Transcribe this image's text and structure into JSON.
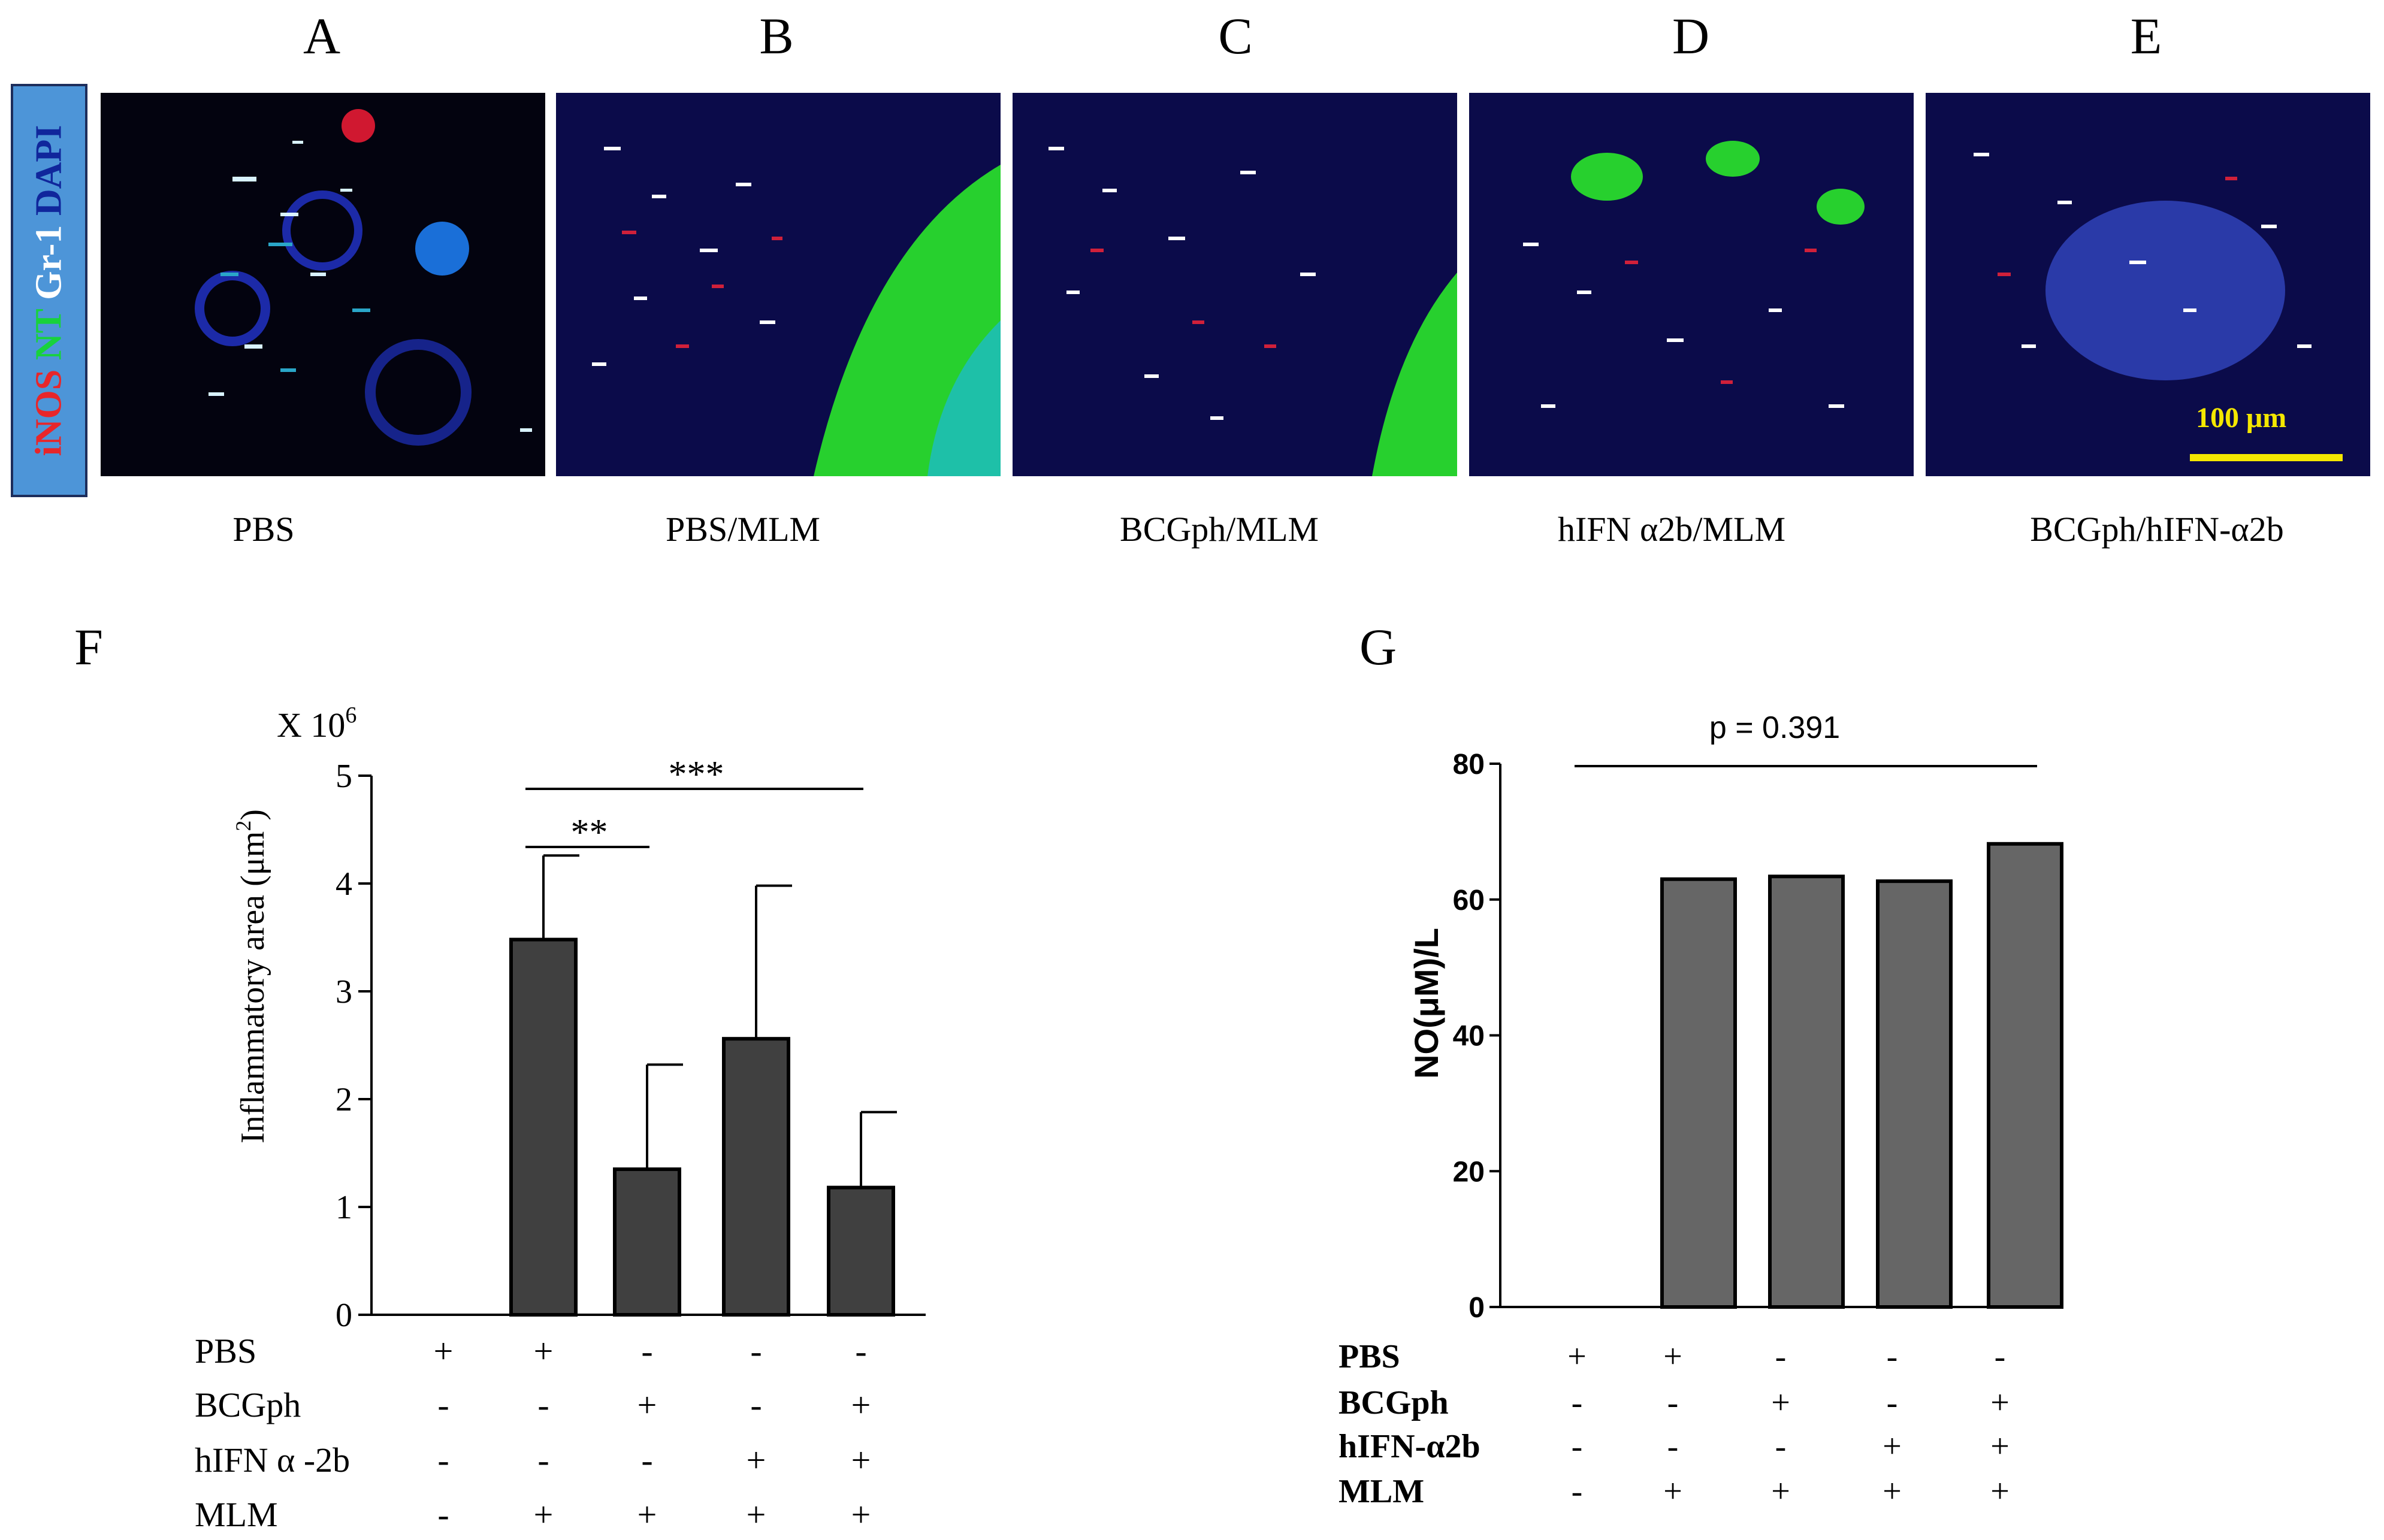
{
  "panels": [
    {
      "letter": "A",
      "label": "PBS"
    },
    {
      "letter": "B",
      "label": "PBS/MLM"
    },
    {
      "letter": "C",
      "label": "BCGph/MLM"
    },
    {
      "letter": "D",
      "label": "hIFN α2b/MLM"
    },
    {
      "letter": "E",
      "label": "BCGph/hIFN-α2b"
    }
  ],
  "stain_legend": {
    "inos": "iNOS",
    "nt": "NT",
    "gr1": "Gr-1",
    "dapi": "DAPI"
  },
  "scale_bar_label": "100 μm",
  "colors": {
    "inos": "#e8262a",
    "nt": "#18d23c",
    "gr1": "#ffffff",
    "dapi": "#10269c",
    "bar_f": "#404040",
    "bar_g": "#666666",
    "scale_bar": "#f4e700",
    "legend_box": "#4d95d8"
  },
  "chart_data": [
    {
      "panel": "F",
      "type": "bar",
      "multiplier": "X 10",
      "multiplier_exp": "6",
      "ylabel": "Inflammatory   area (μm",
      "ylabel_sup": "2",
      "ylabel_end": ")",
      "ylim": [
        0,
        5
      ],
      "yticks": [
        "0",
        "1",
        "2",
        "3",
        "4",
        "5"
      ],
      "values": [
        0,
        3.48,
        1.35,
        2.56,
        1.18
      ],
      "errors": [
        0,
        0.78,
        0.97,
        1.42,
        0.7
      ],
      "significance": [
        {
          "from": 1,
          "to": 2,
          "label": "**"
        },
        {
          "from": 1,
          "to": 4,
          "label": "***"
        }
      ],
      "conditions": [
        {
          "name": "PBS",
          "signs": [
            "+",
            "+",
            "-",
            "-",
            "-"
          ]
        },
        {
          "name": "BCGph",
          "signs": [
            "-",
            "-",
            "+",
            "-",
            "+"
          ]
        },
        {
          "name": "hIFN α -2b",
          "signs": [
            "-",
            "-",
            "-",
            "+",
            "+"
          ]
        },
        {
          "name": "MLM",
          "signs": [
            "-",
            "+",
            "+",
            "+",
            "+"
          ]
        }
      ]
    },
    {
      "panel": "G",
      "type": "bar",
      "ylabel": "NO(μM)/L",
      "ylim": [
        0,
        80
      ],
      "yticks": [
        "0",
        "20",
        "40",
        "60",
        "80"
      ],
      "values": [
        0,
        63,
        63.4,
        62.7,
        68.2
      ],
      "pvalue": "p = 0.391",
      "conditions": [
        {
          "name": "PBS",
          "signs": [
            "+",
            "+",
            "-",
            "-",
            "-"
          ]
        },
        {
          "name": "BCGph",
          "signs": [
            "-",
            "-",
            "+",
            "-",
            "+"
          ]
        },
        {
          "name": "hIFN-α2b",
          "signs": [
            "-",
            "-",
            "-",
            "+",
            "+"
          ]
        },
        {
          "name": "MLM",
          "signs": [
            "-",
            "+",
            "+",
            "+",
            "+"
          ]
        }
      ]
    }
  ]
}
